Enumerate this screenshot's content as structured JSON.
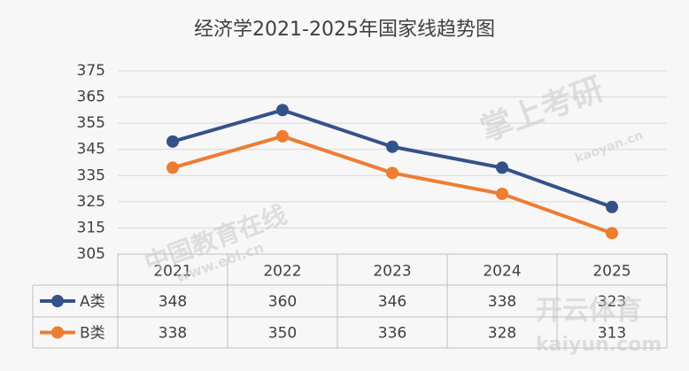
{
  "chart_data": {
    "type": "line",
    "title": "经济学2021-2025年国家线趋势图",
    "categories": [
      "2021",
      "2022",
      "2023",
      "2024",
      "2025"
    ],
    "series": [
      {
        "name": "A类",
        "color": "#34528a",
        "values": [
          348,
          360,
          346,
          338,
          323
        ]
      },
      {
        "name": "B类",
        "color": "#ed7d31",
        "values": [
          338,
          350,
          336,
          328,
          313
        ]
      }
    ],
    "ylim": [
      305,
      375
    ],
    "yticks": [
      305,
      315,
      325,
      335,
      345,
      355,
      365,
      375
    ],
    "grid": true,
    "data_table": true
  },
  "watermarks": [
    "掌上考研",
    "kaoyan.cn",
    "中国教育在线",
    "www.eol.cn",
    "开云体育",
    "kaiyun.com"
  ]
}
